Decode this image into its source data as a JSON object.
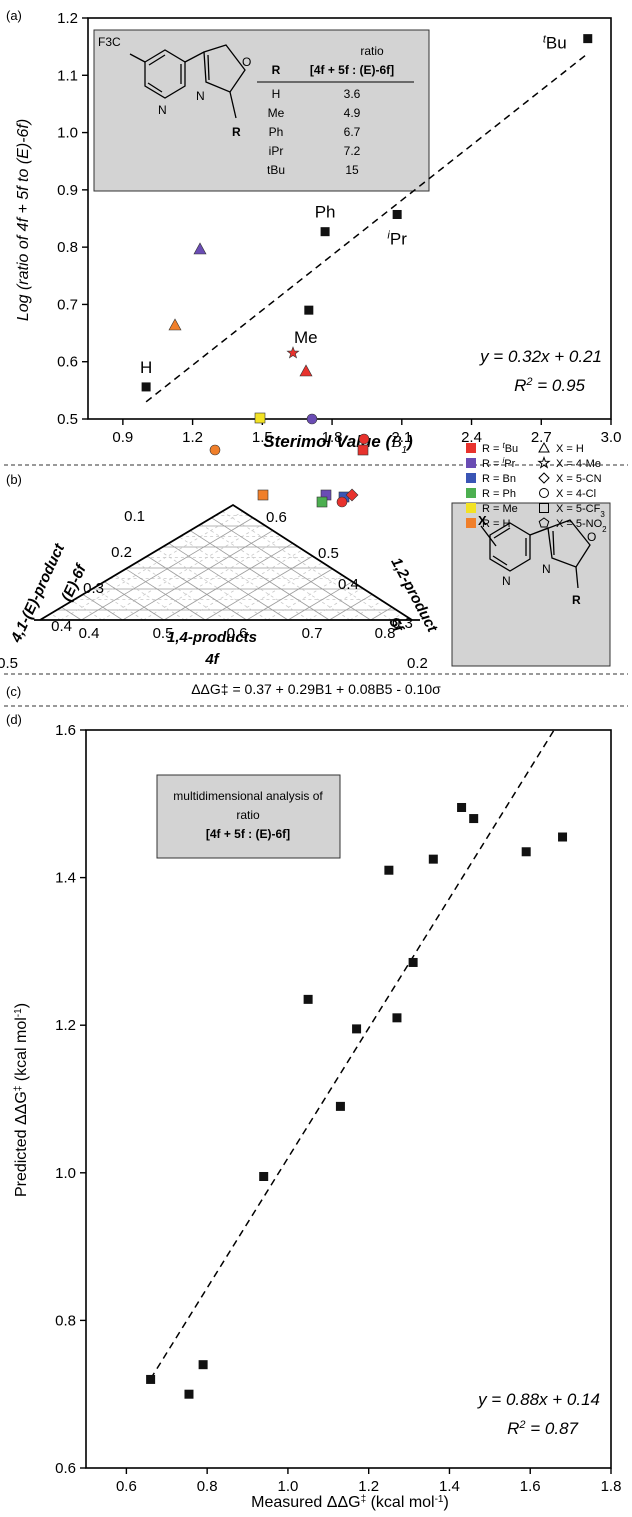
{
  "panels": {
    "a": "(a)",
    "b": "(b)",
    "c": "(c)",
    "d": "(d)"
  },
  "chart_data": [
    {
      "panel": "a",
      "type": "scatter",
      "xlabel": "Sterimol Value (B1)",
      "xlabel_main": "Sterimol Value (",
      "xlabel_sym": "B",
      "xlabel_sub": "1",
      "xlabel_close": ")",
      "ylabel": "Log (ratio of 4f + 5f to (E)-6f)",
      "xlim": [
        0.75,
        3.0
      ],
      "ylim": [
        0.5,
        1.2
      ],
      "xticks": [
        "0.9",
        "1.2",
        "1.5",
        "1.8",
        "2.1",
        "2.4",
        "2.7",
        "3.0"
      ],
      "yticks": [
        "0.5",
        "0.6",
        "0.7",
        "0.8",
        "0.9",
        "1.0",
        "1.1",
        "1.2"
      ],
      "points": [
        {
          "label": "H",
          "x": 1.0,
          "y": 0.556
        },
        {
          "label": "Me",
          "x": 1.7,
          "y": 0.69
        },
        {
          "label": "Ph",
          "x": 1.77,
          "y": 0.827
        },
        {
          "label": "iPr",
          "x": 2.08,
          "y": 0.857
        },
        {
          "label": "tBu",
          "x": 2.9,
          "y": 1.164
        }
      ],
      "fit": {
        "slope": 0.32,
        "intercept": 0.21,
        "x_range": [
          1.0,
          2.9
        ]
      },
      "equation": "y = 0.32x + 0.21",
      "r2": "R2 = 0.95",
      "grid": false,
      "inset": {
        "header": "ratio",
        "col_r": "R",
        "col_ratio": "[4f + 5f : (E)-6f]",
        "molecule_labels": {
          "cf3": "F3C",
          "n": "N",
          "o": "O",
          "r": "R"
        },
        "rows": [
          {
            "r": "H",
            "ratio": "3.6"
          },
          {
            "r": "Me",
            "ratio": "4.9"
          },
          {
            "r": "Ph",
            "ratio": "6.7"
          },
          {
            "r": "iPr",
            "ratio": "7.2"
          },
          {
            "r": "tBu",
            "ratio": "15"
          }
        ]
      }
    },
    {
      "panel": "b",
      "type": "scatter",
      "subtype": "ternary",
      "axes": {
        "left": {
          "title": "4,1-(E)-product",
          "subtitle": "(E)-6f",
          "ticks": [
            "0.1",
            "0.2",
            "0.3",
            "0.4",
            "0.5"
          ]
        },
        "right": {
          "title": "1,2-product",
          "subtitle": "5f",
          "ticks": [
            "0.6",
            "0.5",
            "0.4",
            "0.3",
            "0.2"
          ]
        },
        "bottom": {
          "title": "1,4-products",
          "subtitle": "4f",
          "ticks": [
            "0.4",
            "0.5",
            "0.6",
            "0.7",
            "0.8"
          ]
        }
      },
      "legend_colors": [
        {
          "label": "R = tBu",
          "color": "#e8322d"
        },
        {
          "label": "R = iPr",
          "color": "#6a4cb4"
        },
        {
          "label": "R = Bn",
          "color": "#3a55b5"
        },
        {
          "label": "R = Ph",
          "color": "#4caf50"
        },
        {
          "label": "R = Me",
          "color": "#f2e224"
        },
        {
          "label": "R = H",
          "color": "#f07f2a"
        }
      ],
      "legend_shapes": [
        {
          "label": "X = H",
          "shape": "triangle"
        },
        {
          "label": "X = 4-Me",
          "shape": "star"
        },
        {
          "label": "X = 5-CN",
          "shape": "diamond"
        },
        {
          "label": "X = 4-Cl",
          "shape": "circle"
        },
        {
          "label": "X = 5-CF3",
          "shape": "square"
        },
        {
          "label": "X = 5-NO2",
          "shape": "pentagon"
        }
      ],
      "points": [
        {
          "group": "R = iPr",
          "shape": "triangle",
          "color": "#6a4cb4",
          "fourf": 0.57,
          "fivef": 0.21,
          "sixf": 0.22
        },
        {
          "group": "R = H",
          "shape": "triangle",
          "color": "#f07f2a",
          "fourf": 0.53,
          "fivef": 0.2,
          "sixf": 0.27
        },
        {
          "group": "R = tBu",
          "shape": "star",
          "color": "#e8322d",
          "fourf": 0.45,
          "fivef": 0.4,
          "sixf": 0.15
        },
        {
          "group": "R = tBu",
          "shape": "triangle",
          "color": "#e8322d",
          "fourf": 0.48,
          "fivef": 0.38,
          "sixf": 0.14
        },
        {
          "group": "R = iPr",
          "shape": "circle",
          "color": "#6a4cb4",
          "fourf": 0.56,
          "fivef": 0.33,
          "sixf": 0.11
        },
        {
          "group": "R = Me",
          "shape": "square",
          "color": "#f2e224",
          "fourf": 0.57,
          "fivef": 0.25,
          "sixf": 0.18
        },
        {
          "group": "R = H",
          "shape": "circle",
          "color": "#f07f2a",
          "fourf": 0.61,
          "fivef": 0.18,
          "sixf": 0.21
        },
        {
          "group": "R = tBu",
          "shape": "circle",
          "color": "#e8322d",
          "fourf": 0.65,
          "fivef": 0.29,
          "sixf": 0.06
        },
        {
          "group": "R = tBu",
          "shape": "square",
          "color": "#e8322d",
          "fourf": 0.67,
          "fivef": 0.26,
          "sixf": 0.07
        },
        {
          "group": "R = iPr",
          "shape": "square",
          "color": "#6a4cb4",
          "fourf": 0.66,
          "fivef": 0.21,
          "sixf": 0.13
        },
        {
          "group": "R = Ph",
          "shape": "square",
          "color": "#4caf50",
          "fourf": 0.67,
          "fivef": 0.2,
          "sixf": 0.13
        },
        {
          "group": "R = Bn",
          "shape": "square",
          "color": "#3a55b5",
          "fourf": 0.69,
          "fivef": 0.21,
          "sixf": 0.1
        },
        {
          "group": "R = tBu",
          "shape": "diamond",
          "color": "#e8322d",
          "fourf": 0.69,
          "fivef": 0.22,
          "sixf": 0.09
        },
        {
          "group": "R = tBu",
          "shape": "circle",
          "color": "#e8322d",
          "fourf": 0.7,
          "fivef": 0.2,
          "sixf": 0.1
        },
        {
          "group": "R = H",
          "shape": "square",
          "color": "#f07f2a",
          "fourf": 0.69,
          "fivef": 0.14,
          "sixf": 0.17
        }
      ],
      "inset": {
        "x": "X",
        "n": "N",
        "o": "O",
        "r": "R"
      }
    },
    {
      "panel": "d",
      "type": "scatter",
      "xlabel": "Measured ΔΔG‡ (kcal mol-1)",
      "ylabel": "Predicted ΔΔG‡ (kcal mol-1)",
      "xlim": [
        0.5,
        1.8
      ],
      "ylim": [
        0.6,
        1.6
      ],
      "xticks": [
        "0.6",
        "0.8",
        "1.0",
        "1.2",
        "1.4",
        "1.6",
        "1.8"
      ],
      "yticks": [
        "0.6",
        "0.8",
        "1.0",
        "1.2",
        "1.4",
        "1.6"
      ],
      "x": [
        0.66,
        0.755,
        0.79,
        0.94,
        1.05,
        1.13,
        1.17,
        1.25,
        1.27,
        1.31,
        1.36,
        1.43,
        1.46,
        1.59,
        1.68
      ],
      "y": [
        0.72,
        0.7,
        0.74,
        0.995,
        1.235,
        1.09,
        1.195,
        1.41,
        1.21,
        1.285,
        1.425,
        1.495,
        1.48,
        1.435,
        1.455
      ],
      "fit": {
        "slope": 0.88,
        "intercept": 0.14,
        "x_range": [
          0.66,
          1.66
        ]
      },
      "equation": "y = 0.88x + 0.14",
      "r2": "R2 = 0.87",
      "grid": false,
      "inset": {
        "line1": "multidimensional analysis of",
        "line2": "ratio",
        "line3": "[4f + 5f : (E)-6f]"
      }
    }
  ],
  "equation_c": "ΔΔG‡ = 0.37 + 0.29B1 + 0.08B5 - 0.10σ"
}
